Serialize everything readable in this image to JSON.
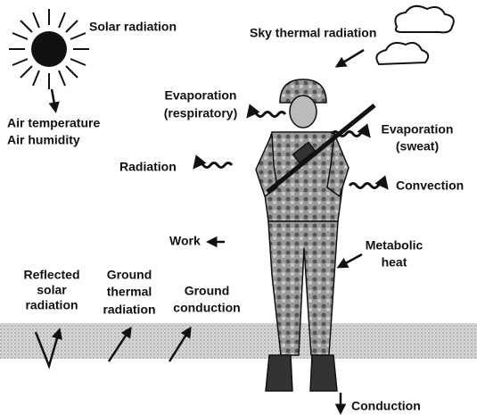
{
  "labels": [
    {
      "lines": [
        "Solar radiation"
      ]
    },
    {
      "lines": [
        "Sky thermal radiation"
      ]
    },
    {
      "lines": [
        "Air temperature",
        "Air humidity"
      ]
    },
    {
      "lines": [
        "Evaporation",
        "(respiratory)"
      ]
    },
    {
      "lines": [
        "Evaporation",
        "(sweat)"
      ]
    },
    {
      "lines": [
        "Radiation"
      ]
    },
    {
      "lines": [
        "Convection"
      ]
    },
    {
      "lines": [
        "Work"
      ]
    },
    {
      "lines": [
        "Metabolic",
        "heat"
      ]
    },
    {
      "lines": [
        "Reflected",
        "solar",
        "radiation"
      ]
    },
    {
      "lines": [
        "Ground",
        "thermal",
        "radiation"
      ]
    },
    {
      "lines": [
        "Ground",
        "conduction"
      ]
    },
    {
      "lines": [
        "Conduction"
      ]
    }
  ]
}
